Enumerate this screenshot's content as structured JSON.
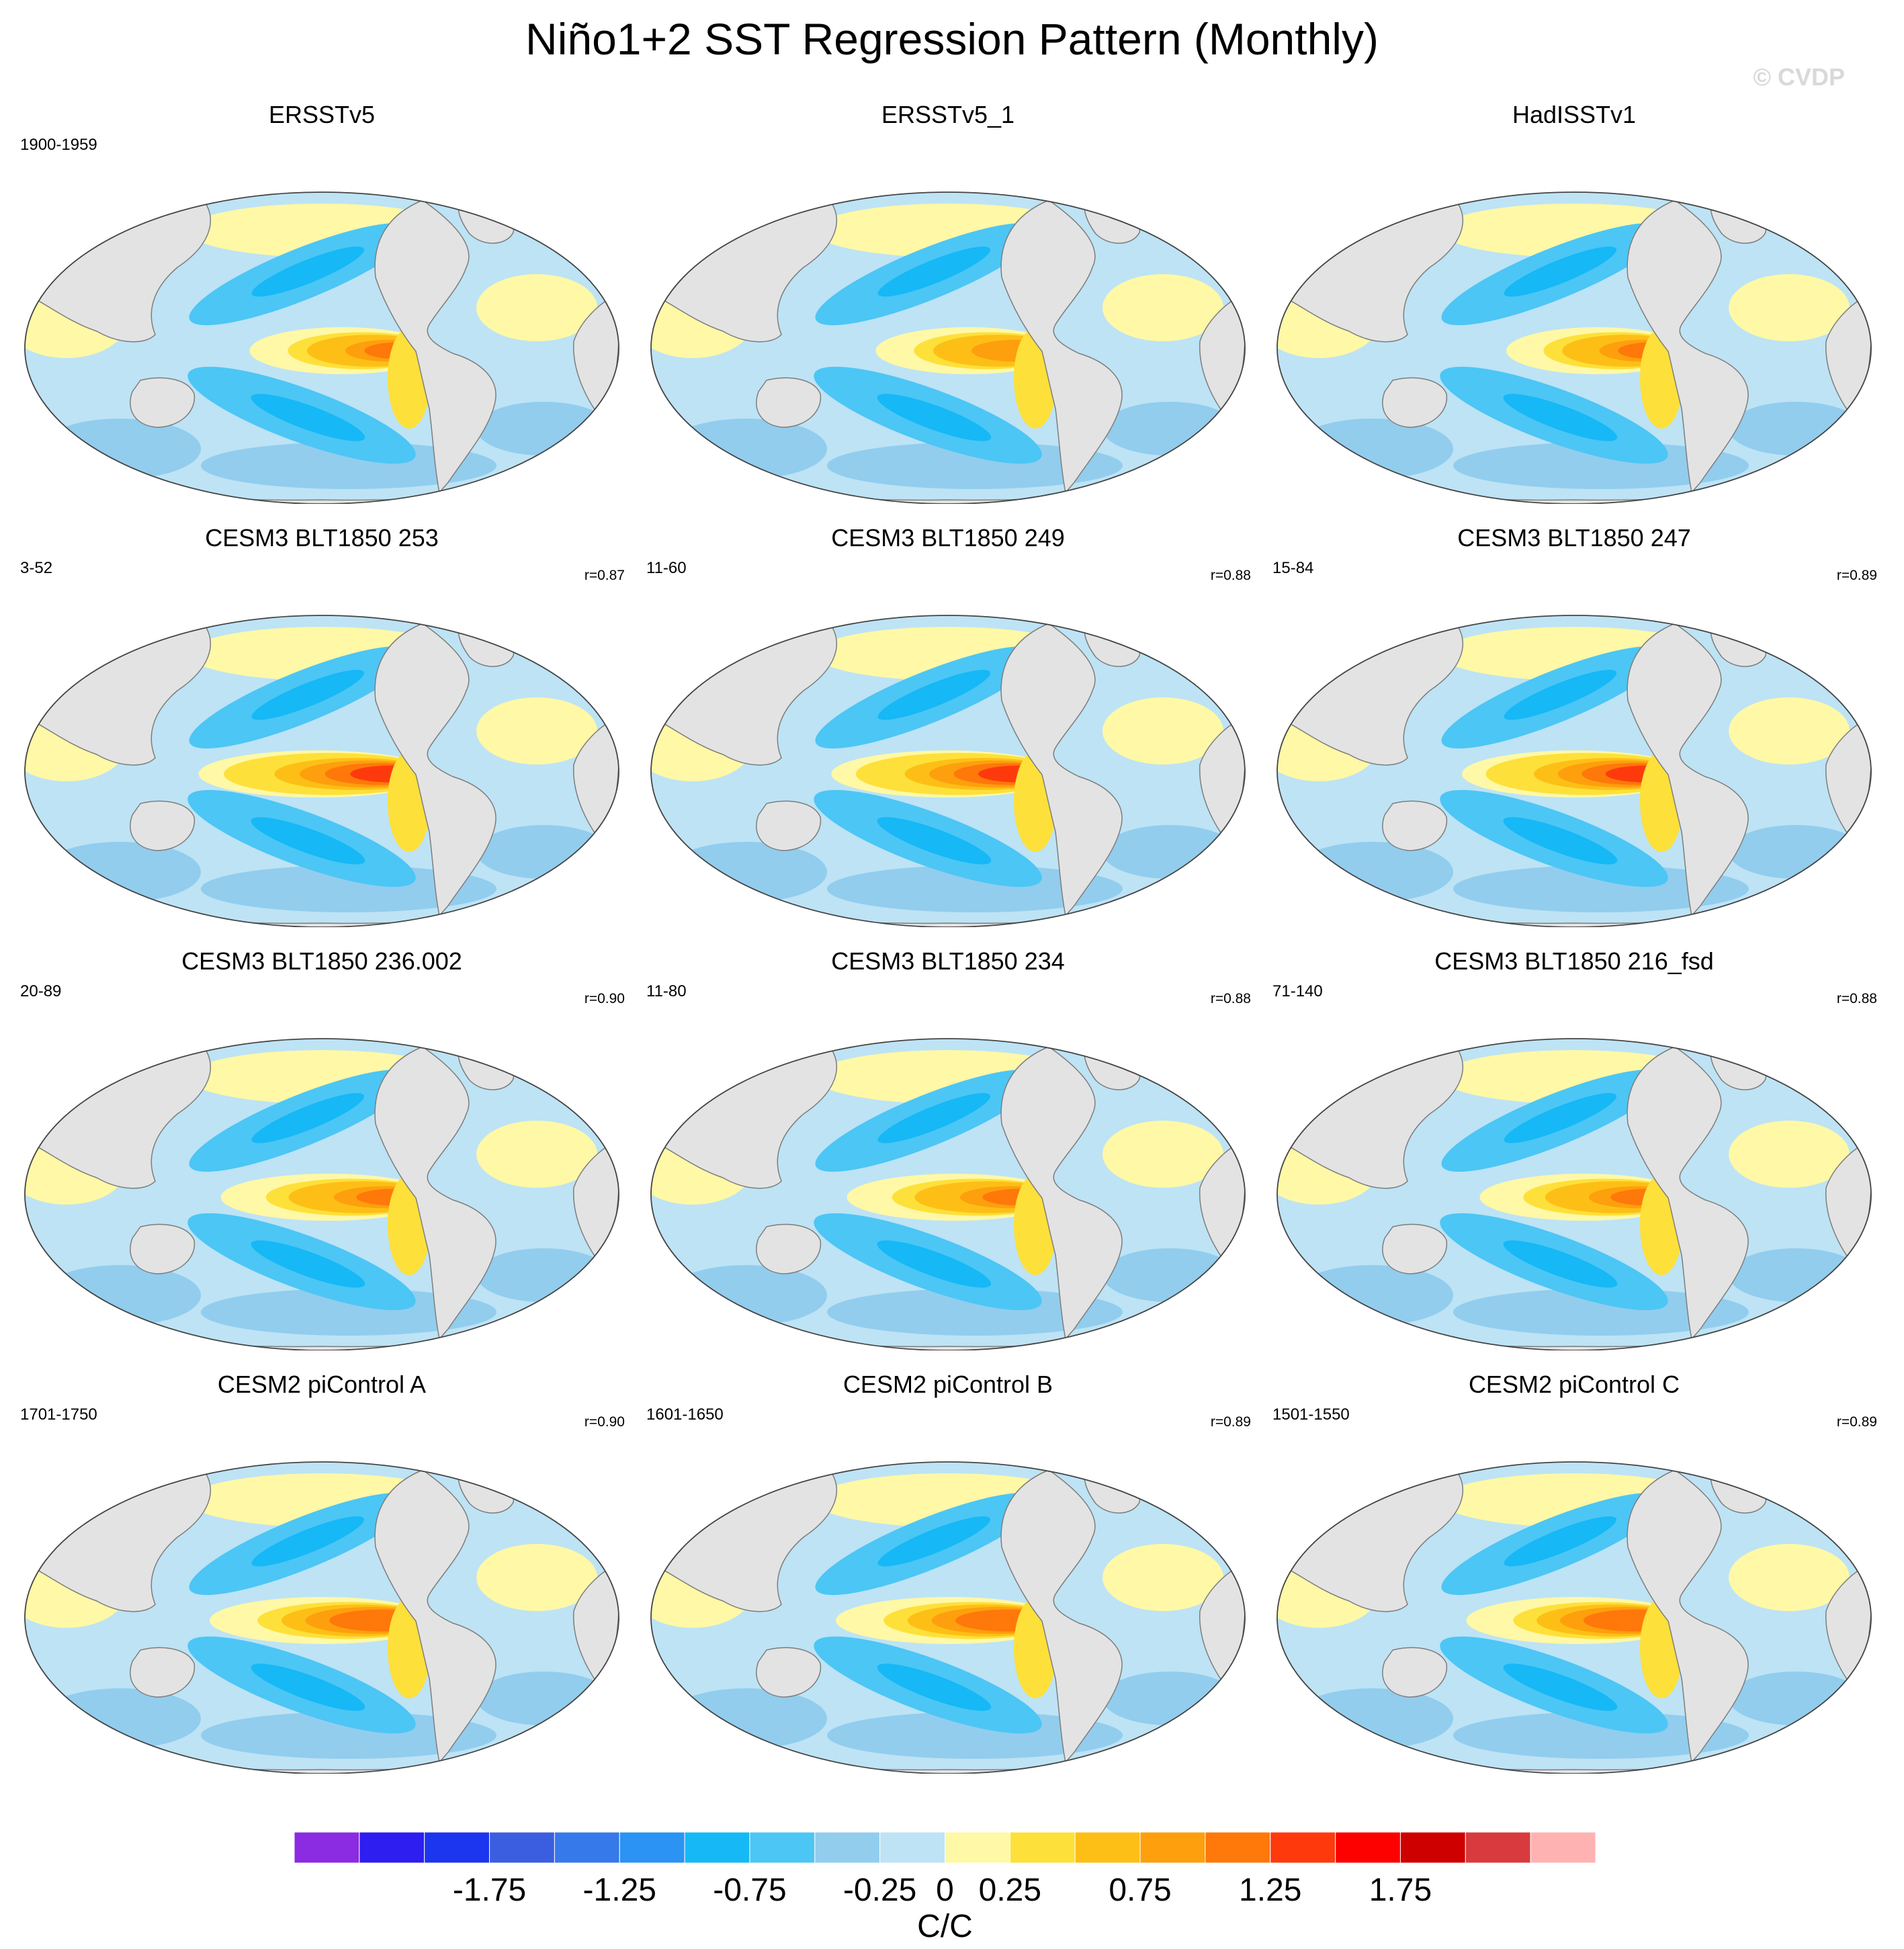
{
  "figure": {
    "title": "Niño1+2 SST Regression Pattern (Monthly)",
    "copyright": "© CVDP"
  },
  "chart_data": {
    "type": "heatmap",
    "title": "Niño1+2 SST Regression Pattern (Monthly)",
    "projection": "global map (Robinson-like ellipse), Pacific-centered",
    "units": "C/C",
    "colorbar": {
      "label": "C/C",
      "levels": [
        -2.0,
        -1.75,
        -1.5,
        -1.25,
        -1.0,
        -0.75,
        -0.5,
        -0.25,
        0,
        0.25,
        0.5,
        0.75,
        1.0,
        1.25,
        1.5,
        1.75,
        2.0
      ],
      "tick_labels": [
        "-1.75",
        "-1.25",
        "-0.75",
        "-0.25",
        "0",
        "0.25",
        "0.75",
        "1.25",
        "1.75"
      ],
      "colors": [
        "#8b2be2",
        "#2e1ef0",
        "#1c35ee",
        "#3b5ee0",
        "#3679ea",
        "#2a93f3",
        "#16b8f6",
        "#4cc6f5",
        "#92cdee",
        "#bde3f5",
        "#fff8a6",
        "#fee03a",
        "#fdbf16",
        "#fe9f0d",
        "#fe780a",
        "#fe3a0d",
        "#fd0000",
        "#cf0000",
        "#d93a3d",
        "#ffb2b2"
      ]
    },
    "panels": [
      {
        "name": "ERSSTv5",
        "period": "1900-1959",
        "r": "",
        "max_equatorial_value": 1.3,
        "warm_tongue_extent": 0.72
      },
      {
        "name": "ERSSTv5_1",
        "period": "",
        "r": "",
        "max_equatorial_value": 1.2,
        "warm_tongue_extent": 0.72
      },
      {
        "name": "HadISSTv1",
        "period": "",
        "r": "",
        "max_equatorial_value": 1.25,
        "warm_tongue_extent": 0.7
      },
      {
        "name": "CESM3 BLT1850 253",
        "period": "3-52",
        "r": "r=0.87",
        "max_equatorial_value": 1.6,
        "warm_tongue_extent": 0.95
      },
      {
        "name": "CESM3 BLT1850 249",
        "period": "11-60",
        "r": "r=0.88",
        "max_equatorial_value": 1.55,
        "warm_tongue_extent": 0.92
      },
      {
        "name": "CESM3 BLT1850 247",
        "period": "15-84",
        "r": "r=0.89",
        "max_equatorial_value": 1.55,
        "warm_tongue_extent": 0.9
      },
      {
        "name": "CESM3 BLT1850 236.002",
        "period": "20-89",
        "r": "r=0.90",
        "max_equatorial_value": 1.3,
        "warm_tongue_extent": 0.85
      },
      {
        "name": "CESM3 BLT1850 234",
        "period": "11-80",
        "r": "r=0.88",
        "max_equatorial_value": 1.3,
        "warm_tongue_extent": 0.85
      },
      {
        "name": "CESM3 BLT1850 216_fsd",
        "period": "71-140",
        "r": "r=0.88",
        "max_equatorial_value": 1.3,
        "warm_tongue_extent": 0.82
      },
      {
        "name": "CESM2 piControl A",
        "period": "1701-1750",
        "r": "r=0.90",
        "max_equatorial_value": 1.45,
        "warm_tongue_extent": 0.9
      },
      {
        "name": "CESM2 piControl B",
        "period": "1601-1650",
        "r": "r=0.89",
        "max_equatorial_value": 1.45,
        "warm_tongue_extent": 0.9
      },
      {
        "name": "CESM2 piControl C",
        "period": "1501-1550",
        "r": "r=0.89",
        "max_equatorial_value": 1.45,
        "warm_tongue_extent": 0.88
      }
    ]
  }
}
